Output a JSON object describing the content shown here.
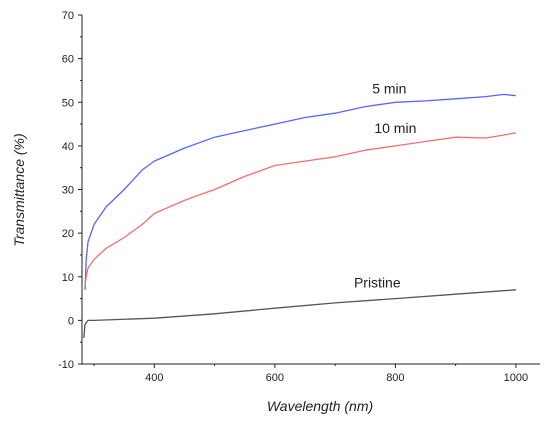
{
  "chart_data": {
    "type": "line",
    "title": "",
    "xlabel": "Wavelength (nm)",
    "ylabel": "Transmittance (%)",
    "xlim": [
      280,
      1040
    ],
    "ylim": [
      -10,
      70
    ],
    "xticks": [
      400,
      600,
      800,
      1000
    ],
    "yticks": [
      -10,
      0,
      10,
      20,
      30,
      40,
      50,
      60,
      70
    ],
    "grid": false,
    "legend": "none",
    "series": [
      {
        "name": "5 min",
        "color": "#5566ff",
        "x": [
          285,
          287,
          290,
          300,
          320,
          350,
          380,
          400,
          450,
          500,
          550,
          600,
          650,
          700,
          750,
          800,
          850,
          900,
          950,
          980,
          1000
        ],
        "y": [
          7,
          14,
          18,
          22,
          26,
          30,
          34.5,
          36.5,
          39.5,
          42,
          43.5,
          45,
          46.5,
          47.5,
          49,
          50,
          50.3,
          50.8,
          51.3,
          51.8,
          51.5
        ]
      },
      {
        "name": "10 min",
        "color": "#f07070",
        "x": [
          285,
          287,
          290,
          300,
          320,
          350,
          380,
          400,
          450,
          500,
          550,
          600,
          650,
          700,
          750,
          800,
          850,
          900,
          950,
          980,
          1000
        ],
        "y": [
          8,
          10,
          12,
          14,
          16.5,
          19,
          22,
          24.5,
          27.5,
          30,
          33,
          35.5,
          36.5,
          37.5,
          39,
          40,
          41,
          42,
          41.8,
          42.5,
          43
        ]
      },
      {
        "name": "Pristine",
        "color": "#555555",
        "x": [
          283,
          285,
          287,
          290,
          300,
          400,
          500,
          600,
          700,
          800,
          900,
          1000
        ],
        "y": [
          -4,
          -1,
          -0.5,
          0,
          0,
          0.5,
          1.5,
          2.8,
          4,
          5,
          6,
          7
        ]
      }
    ]
  }
}
